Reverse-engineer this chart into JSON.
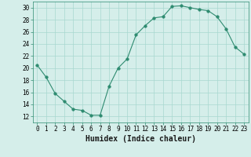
{
  "x": [
    0,
    1,
    2,
    3,
    4,
    5,
    6,
    7,
    8,
    9,
    10,
    11,
    12,
    13,
    14,
    15,
    16,
    17,
    18,
    19,
    20,
    21,
    22,
    23
  ],
  "y": [
    20.5,
    18.5,
    15.8,
    14.5,
    13.2,
    13.0,
    12.2,
    12.2,
    17.0,
    20.0,
    21.5,
    25.5,
    27.0,
    28.3,
    28.5,
    30.2,
    30.3,
    30.0,
    29.7,
    29.5,
    28.5,
    26.5,
    23.5,
    22.3
  ],
  "line_color": "#2e8b70",
  "marker": "o",
  "marker_size": 2.5,
  "bg_color": "#d5eeea",
  "grid_color": "#a8d8d0",
  "xlabel": "Humidex (Indice chaleur)",
  "xlim": [
    -0.5,
    23.5
  ],
  "ylim": [
    11,
    31
  ],
  "yticks": [
    12,
    14,
    16,
    18,
    20,
    22,
    24,
    26,
    28,
    30
  ],
  "xticks": [
    0,
    1,
    2,
    3,
    4,
    5,
    6,
    7,
    8,
    9,
    10,
    11,
    12,
    13,
    14,
    15,
    16,
    17,
    18,
    19,
    20,
    21,
    22,
    23
  ],
  "tick_label_fontsize": 5.5,
  "xlabel_fontsize": 7
}
